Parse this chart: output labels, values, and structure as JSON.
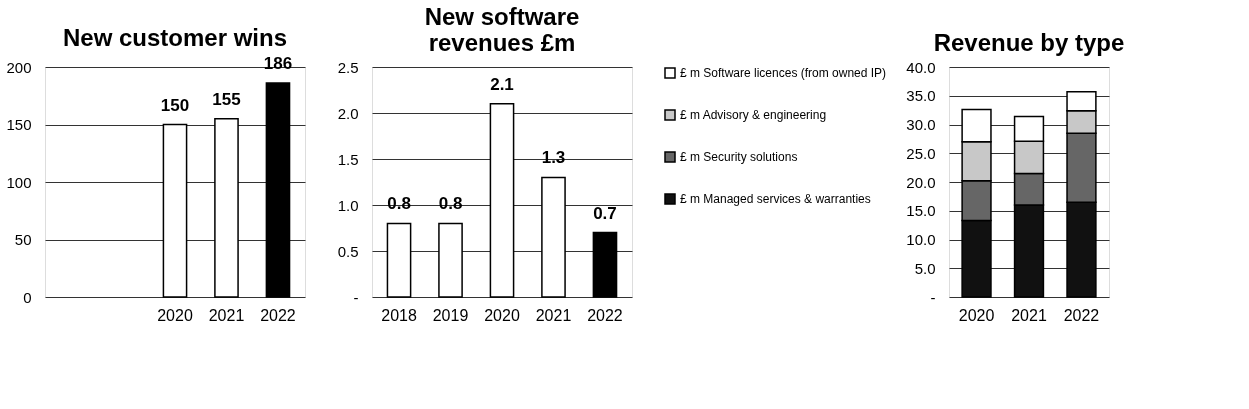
{
  "chart_data": [
    {
      "type": "bar",
      "title": "New customer wins",
      "categories": [
        null,
        null,
        "2020",
        "2021",
        "2022"
      ],
      "values": [
        null,
        null,
        150,
        155,
        186
      ],
      "colors": [
        "#ffffff",
        "#ffffff",
        "#ffffff",
        "#ffffff",
        "#000000"
      ],
      "ylim": [
        0,
        200
      ],
      "yticks": [
        0,
        50,
        100,
        150,
        200
      ],
      "grid": "y",
      "data_labels": true,
      "legend": false
    },
    {
      "type": "bar",
      "title": "New software revenues £m",
      "categories": [
        "2018",
        "2019",
        "2020",
        "2021",
        "2022"
      ],
      "values": [
        0.8,
        0.8,
        2.1,
        1.3,
        0.7
      ],
      "colors": [
        "#ffffff",
        "#ffffff",
        "#ffffff",
        "#ffffff",
        "#000000"
      ],
      "ylim": [
        0,
        2.5
      ],
      "yticks": [
        {
          "value": 0,
          "label": "-"
        },
        0.5,
        {
          "value": 1,
          "label": "1.0"
        },
        1.5,
        {
          "value": 2,
          "label": "2.0"
        },
        2.5
      ],
      "grid": "y",
      "data_labels": true,
      "legend": false
    },
    {
      "type": "bar",
      "title": "Revenue by type",
      "stacked": true,
      "categories": [
        "2020",
        "2021",
        "2022"
      ],
      "series": [
        {
          "name": "£ m Managed services & warranties",
          "color": "#111111",
          "values": [
            13.3,
            16.0,
            16.5
          ]
        },
        {
          "name": "£ m Security solutions",
          "color": "#666666",
          "values": [
            6.9,
            5.5,
            12.0
          ]
        },
        {
          "name": "£ m Advisory & engineering",
          "color": "#c8c8c8",
          "values": [
            6.8,
            5.6,
            3.9
          ]
        },
        {
          "name": "£ m Software licences (from owned IP)",
          "color": "#ffffff",
          "values": [
            5.6,
            4.3,
            3.3
          ]
        }
      ],
      "ylim": [
        0,
        40
      ],
      "yticks": [
        {
          "value": 0,
          "label": "-"
        },
        {
          "value": 5,
          "label": "5.0"
        },
        {
          "value": 10,
          "label": "10.0"
        },
        {
          "value": 15,
          "label": "15.0"
        },
        {
          "value": 20,
          "label": "20.0"
        },
        {
          "value": 25,
          "label": "25.0"
        },
        {
          "value": 30,
          "label": "30.0"
        },
        {
          "value": 35,
          "label": "35.0"
        },
        {
          "value": 40,
          "label": "40.0"
        }
      ],
      "grid": "y",
      "legend": "left"
    }
  ]
}
